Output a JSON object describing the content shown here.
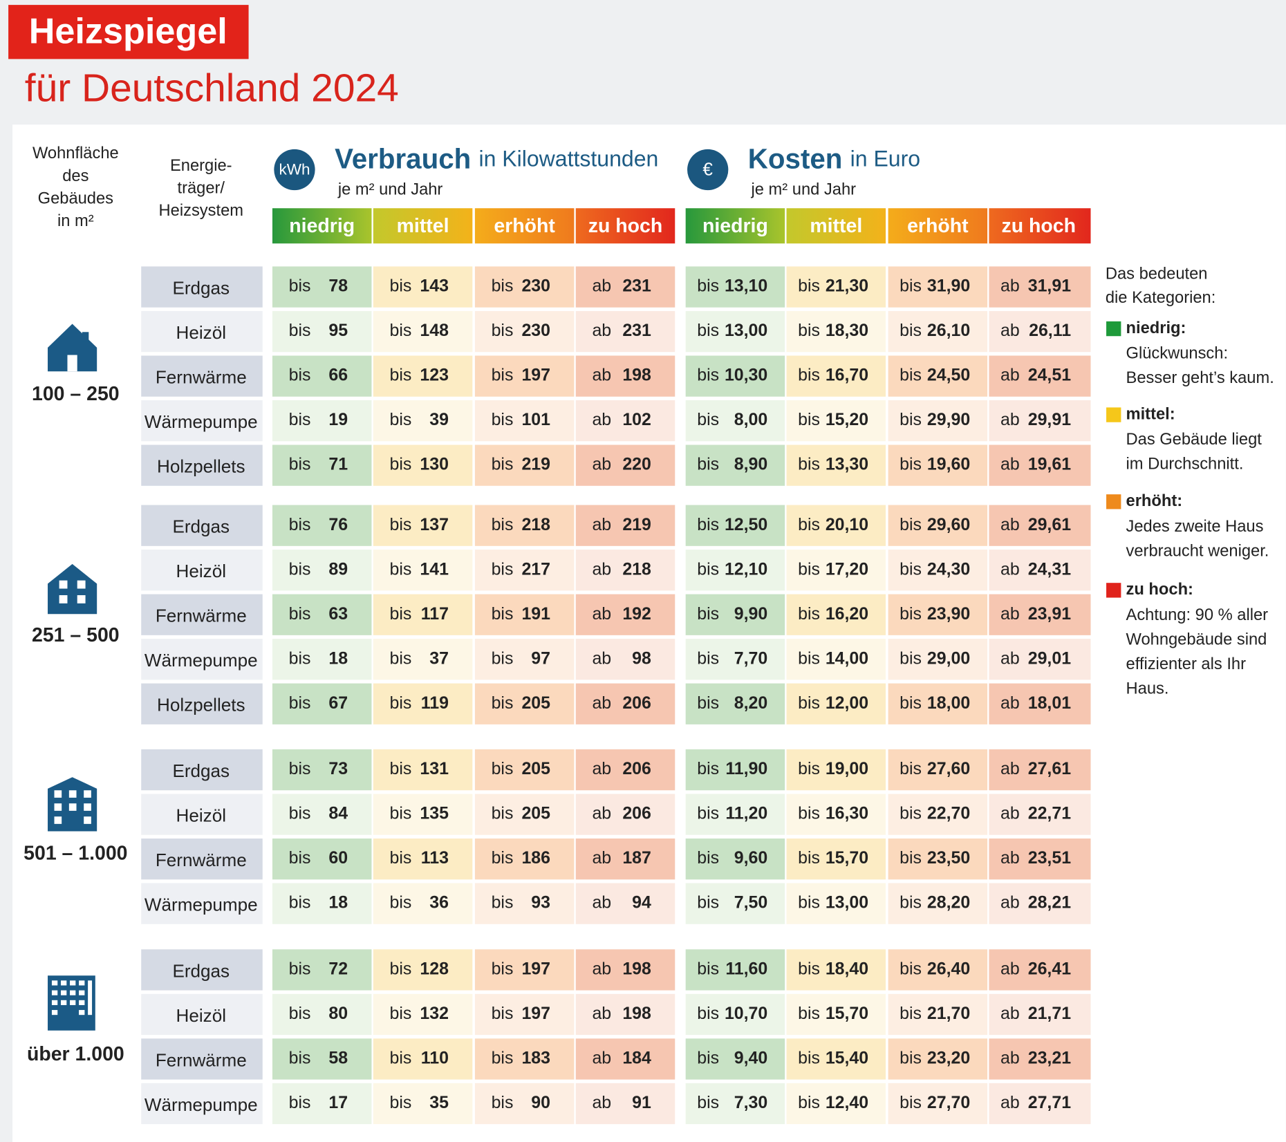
{
  "header": {
    "title": "Heizspiegel",
    "subtitle": "für Deutschland 2024"
  },
  "columns": {
    "area": [
      "Wohnfläche",
      "des",
      "Gebäudes",
      "in m²"
    ],
    "carrier": [
      "Energie-",
      "träger/",
      "Heizsystem"
    ],
    "consumption": {
      "icon": "kWh",
      "title": "Verbrauch",
      "unit": "in Kilowattstunden",
      "per": "je m² und Jahr"
    },
    "costs": {
      "icon": "€",
      "title": "Kosten",
      "unit": "in Euro",
      "per": "je m² und Jahr"
    },
    "categories": [
      "niedrig",
      "mittel",
      "erhöht",
      "zu hoch"
    ]
  },
  "groups": [
    {
      "area": "100 – 250",
      "rows": [
        {
          "carrier": "Erdgas",
          "kwh": [
            [
              "bis",
              "78"
            ],
            [
              "bis",
              "143"
            ],
            [
              "bis",
              "230"
            ],
            [
              "ab",
              "231"
            ]
          ],
          "eur": [
            [
              "bis",
              "13,10"
            ],
            [
              "bis",
              "21,30"
            ],
            [
              "bis",
              "31,90"
            ],
            [
              "ab",
              "31,91"
            ]
          ]
        },
        {
          "carrier": "Heizöl",
          "kwh": [
            [
              "bis",
              "95"
            ],
            [
              "bis",
              "148"
            ],
            [
              "bis",
              "230"
            ],
            [
              "ab",
              "231"
            ]
          ],
          "eur": [
            [
              "bis",
              "13,00"
            ],
            [
              "bis",
              "18,30"
            ],
            [
              "bis",
              "26,10"
            ],
            [
              "ab",
              "26,11"
            ]
          ]
        },
        {
          "carrier": "Fernwärme",
          "kwh": [
            [
              "bis",
              "66"
            ],
            [
              "bis",
              "123"
            ],
            [
              "bis",
              "197"
            ],
            [
              "ab",
              "198"
            ]
          ],
          "eur": [
            [
              "bis",
              "10,30"
            ],
            [
              "bis",
              "16,70"
            ],
            [
              "bis",
              "24,50"
            ],
            [
              "ab",
              "24,51"
            ]
          ]
        },
        {
          "carrier": "Wärmepumpe",
          "kwh": [
            [
              "bis",
              "19"
            ],
            [
              "bis",
              "39"
            ],
            [
              "bis",
              "101"
            ],
            [
              "ab",
              "102"
            ]
          ],
          "eur": [
            [
              "bis",
              "8,00"
            ],
            [
              "bis",
              "15,20"
            ],
            [
              "bis",
              "29,90"
            ],
            [
              "ab",
              "29,91"
            ]
          ]
        },
        {
          "carrier": "Holzpellets",
          "kwh": [
            [
              "bis",
              "71"
            ],
            [
              "bis",
              "130"
            ],
            [
              "bis",
              "219"
            ],
            [
              "ab",
              "220"
            ]
          ],
          "eur": [
            [
              "bis",
              "8,90"
            ],
            [
              "bis",
              "13,30"
            ],
            [
              "bis",
              "19,60"
            ],
            [
              "ab",
              "19,61"
            ]
          ]
        }
      ]
    },
    {
      "area": "251 – 500",
      "rows": [
        {
          "carrier": "Erdgas",
          "kwh": [
            [
              "bis",
              "76"
            ],
            [
              "bis",
              "137"
            ],
            [
              "bis",
              "218"
            ],
            [
              "ab",
              "219"
            ]
          ],
          "eur": [
            [
              "bis",
              "12,50"
            ],
            [
              "bis",
              "20,10"
            ],
            [
              "bis",
              "29,60"
            ],
            [
              "ab",
              "29,61"
            ]
          ]
        },
        {
          "carrier": "Heizöl",
          "kwh": [
            [
              "bis",
              "89"
            ],
            [
              "bis",
              "141"
            ],
            [
              "bis",
              "217"
            ],
            [
              "ab",
              "218"
            ]
          ],
          "eur": [
            [
              "bis",
              "12,10"
            ],
            [
              "bis",
              "17,20"
            ],
            [
              "bis",
              "24,30"
            ],
            [
              "ab",
              "24,31"
            ]
          ]
        },
        {
          "carrier": "Fernwärme",
          "kwh": [
            [
              "bis",
              "63"
            ],
            [
              "bis",
              "117"
            ],
            [
              "bis",
              "191"
            ],
            [
              "ab",
              "192"
            ]
          ],
          "eur": [
            [
              "bis",
              "9,90"
            ],
            [
              "bis",
              "16,20"
            ],
            [
              "bis",
              "23,90"
            ],
            [
              "ab",
              "23,91"
            ]
          ]
        },
        {
          "carrier": "Wärmepumpe",
          "kwh": [
            [
              "bis",
              "18"
            ],
            [
              "bis",
              "37"
            ],
            [
              "bis",
              "97"
            ],
            [
              "ab",
              "98"
            ]
          ],
          "eur": [
            [
              "bis",
              "7,70"
            ],
            [
              "bis",
              "14,00"
            ],
            [
              "bis",
              "29,00"
            ],
            [
              "ab",
              "29,01"
            ]
          ]
        },
        {
          "carrier": "Holzpellets",
          "kwh": [
            [
              "bis",
              "67"
            ],
            [
              "bis",
              "119"
            ],
            [
              "bis",
              "205"
            ],
            [
              "ab",
              "206"
            ]
          ],
          "eur": [
            [
              "bis",
              "8,20"
            ],
            [
              "bis",
              "12,00"
            ],
            [
              "bis",
              "18,00"
            ],
            [
              "ab",
              "18,01"
            ]
          ]
        }
      ]
    },
    {
      "area": "501 – 1.000",
      "rows": [
        {
          "carrier": "Erdgas",
          "kwh": [
            [
              "bis",
              "73"
            ],
            [
              "bis",
              "131"
            ],
            [
              "bis",
              "205"
            ],
            [
              "ab",
              "206"
            ]
          ],
          "eur": [
            [
              "bis",
              "11,90"
            ],
            [
              "bis",
              "19,00"
            ],
            [
              "bis",
              "27,60"
            ],
            [
              "ab",
              "27,61"
            ]
          ]
        },
        {
          "carrier": "Heizöl",
          "kwh": [
            [
              "bis",
              "84"
            ],
            [
              "bis",
              "135"
            ],
            [
              "bis",
              "205"
            ],
            [
              "ab",
              "206"
            ]
          ],
          "eur": [
            [
              "bis",
              "11,20"
            ],
            [
              "bis",
              "16,30"
            ],
            [
              "bis",
              "22,70"
            ],
            [
              "ab",
              "22,71"
            ]
          ]
        },
        {
          "carrier": "Fernwärme",
          "kwh": [
            [
              "bis",
              "60"
            ],
            [
              "bis",
              "113"
            ],
            [
              "bis",
              "186"
            ],
            [
              "ab",
              "187"
            ]
          ],
          "eur": [
            [
              "bis",
              "9,60"
            ],
            [
              "bis",
              "15,70"
            ],
            [
              "bis",
              "23,50"
            ],
            [
              "ab",
              "23,51"
            ]
          ]
        },
        {
          "carrier": "Wärmepumpe",
          "kwh": [
            [
              "bis",
              "18"
            ],
            [
              "bis",
              "36"
            ],
            [
              "bis",
              "93"
            ],
            [
              "ab",
              "94"
            ]
          ],
          "eur": [
            [
              "bis",
              "7,50"
            ],
            [
              "bis",
              "13,00"
            ],
            [
              "bis",
              "28,20"
            ],
            [
              "ab",
              "28,21"
            ]
          ]
        }
      ]
    },
    {
      "area": "über 1.000",
      "rows": [
        {
          "carrier": "Erdgas",
          "kwh": [
            [
              "bis",
              "72"
            ],
            [
              "bis",
              "128"
            ],
            [
              "bis",
              "197"
            ],
            [
              "ab",
              "198"
            ]
          ],
          "eur": [
            [
              "bis",
              "11,60"
            ],
            [
              "bis",
              "18,40"
            ],
            [
              "bis",
              "26,40"
            ],
            [
              "ab",
              "26,41"
            ]
          ]
        },
        {
          "carrier": "Heizöl",
          "kwh": [
            [
              "bis",
              "80"
            ],
            [
              "bis",
              "132"
            ],
            [
              "bis",
              "197"
            ],
            [
              "ab",
              "198"
            ]
          ],
          "eur": [
            [
              "bis",
              "10,70"
            ],
            [
              "bis",
              "15,70"
            ],
            [
              "bis",
              "21,70"
            ],
            [
              "ab",
              "21,71"
            ]
          ]
        },
        {
          "carrier": "Fernwärme",
          "kwh": [
            [
              "bis",
              "58"
            ],
            [
              "bis",
              "110"
            ],
            [
              "bis",
              "183"
            ],
            [
              "ab",
              "184"
            ]
          ],
          "eur": [
            [
              "bis",
              "9,40"
            ],
            [
              "bis",
              "15,40"
            ],
            [
              "bis",
              "23,20"
            ],
            [
              "ab",
              "23,21"
            ]
          ]
        },
        {
          "carrier": "Wärmepumpe",
          "kwh": [
            [
              "bis",
              "17"
            ],
            [
              "bis",
              "35"
            ],
            [
              "bis",
              "90"
            ],
            [
              "ab",
              "91"
            ]
          ],
          "eur": [
            [
              "bis",
              "7,30"
            ],
            [
              "bis",
              "12,40"
            ],
            [
              "bis",
              "27,70"
            ],
            [
              "ab",
              "27,71"
            ]
          ]
        }
      ]
    }
  ],
  "legend": {
    "title": [
      "Das bedeuten",
      "die Kategorien:"
    ],
    "items": [
      {
        "name": "niedrig:",
        "text": [
          "Glückwunsch:",
          "Besser geht’s kaum."
        ]
      },
      {
        "name": "mittel:",
        "text": [
          "Das Gebäude liegt",
          "im Durchschnitt."
        ]
      },
      {
        "name": "erhöht:",
        "text": [
          "Jedes zweite Haus",
          "verbraucht weniger."
        ]
      },
      {
        "name": "zu hoch:",
        "text": [
          "Achtung: 90 % aller",
          "Wohngebäude sind",
          "effizienter als Ihr",
          "Haus."
        ]
      }
    ]
  }
}
